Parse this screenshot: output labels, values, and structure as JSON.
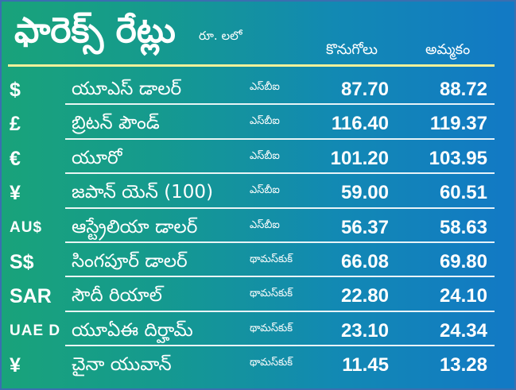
{
  "header": {
    "title": "ఫారెక్స్ రేట్లు",
    "unit": "రూ. లలో",
    "buy_label": "కొనుగోలు",
    "sell_label": "అమ్మకం"
  },
  "rows": [
    {
      "symbol": "$",
      "name": "యూఎస్ డాలర్",
      "source": "ఎస్‌బీఐ",
      "buy": "87.70",
      "sell": "88.72"
    },
    {
      "symbol": "£",
      "name": "బ్రిటన్ పౌండ్",
      "source": "ఎస్‌బీఐ",
      "buy": "116.40",
      "sell": "119.37"
    },
    {
      "symbol": "€",
      "name": "యూరో",
      "source": "ఎస్‌బీఐ",
      "buy": "101.20",
      "sell": "103.95"
    },
    {
      "symbol": "¥",
      "name": "జపాన్ యెన్ (100)",
      "source": "ఎస్‌బీఐ",
      "buy": "59.00",
      "sell": "60.51"
    },
    {
      "symbol": "AU$",
      "name": "ఆస్ట్రేలియా డాలర్",
      "source": "ఎస్‌బీఐ",
      "buy": "56.37",
      "sell": "58.63"
    },
    {
      "symbol": "S$",
      "name": "సింగపూర్ డాలర్",
      "source": "థామస్‌కుక్",
      "buy": "66.08",
      "sell": "69.80"
    },
    {
      "symbol": "SAR",
      "name": "సౌదీ రియాల్",
      "source": "థామస్‌కుక్",
      "buy": "22.80",
      "sell": "24.10"
    },
    {
      "symbol": "UAE D",
      "name": "యూఏఈ దిర్హామ్",
      "source": "థామస్‌కుక్",
      "buy": "23.10",
      "sell": "24.34"
    },
    {
      "symbol": "¥",
      "name": "చైనా యువాన్",
      "source": "థామస్‌కుక్",
      "buy": "11.45",
      "sell": "13.28"
    }
  ]
}
